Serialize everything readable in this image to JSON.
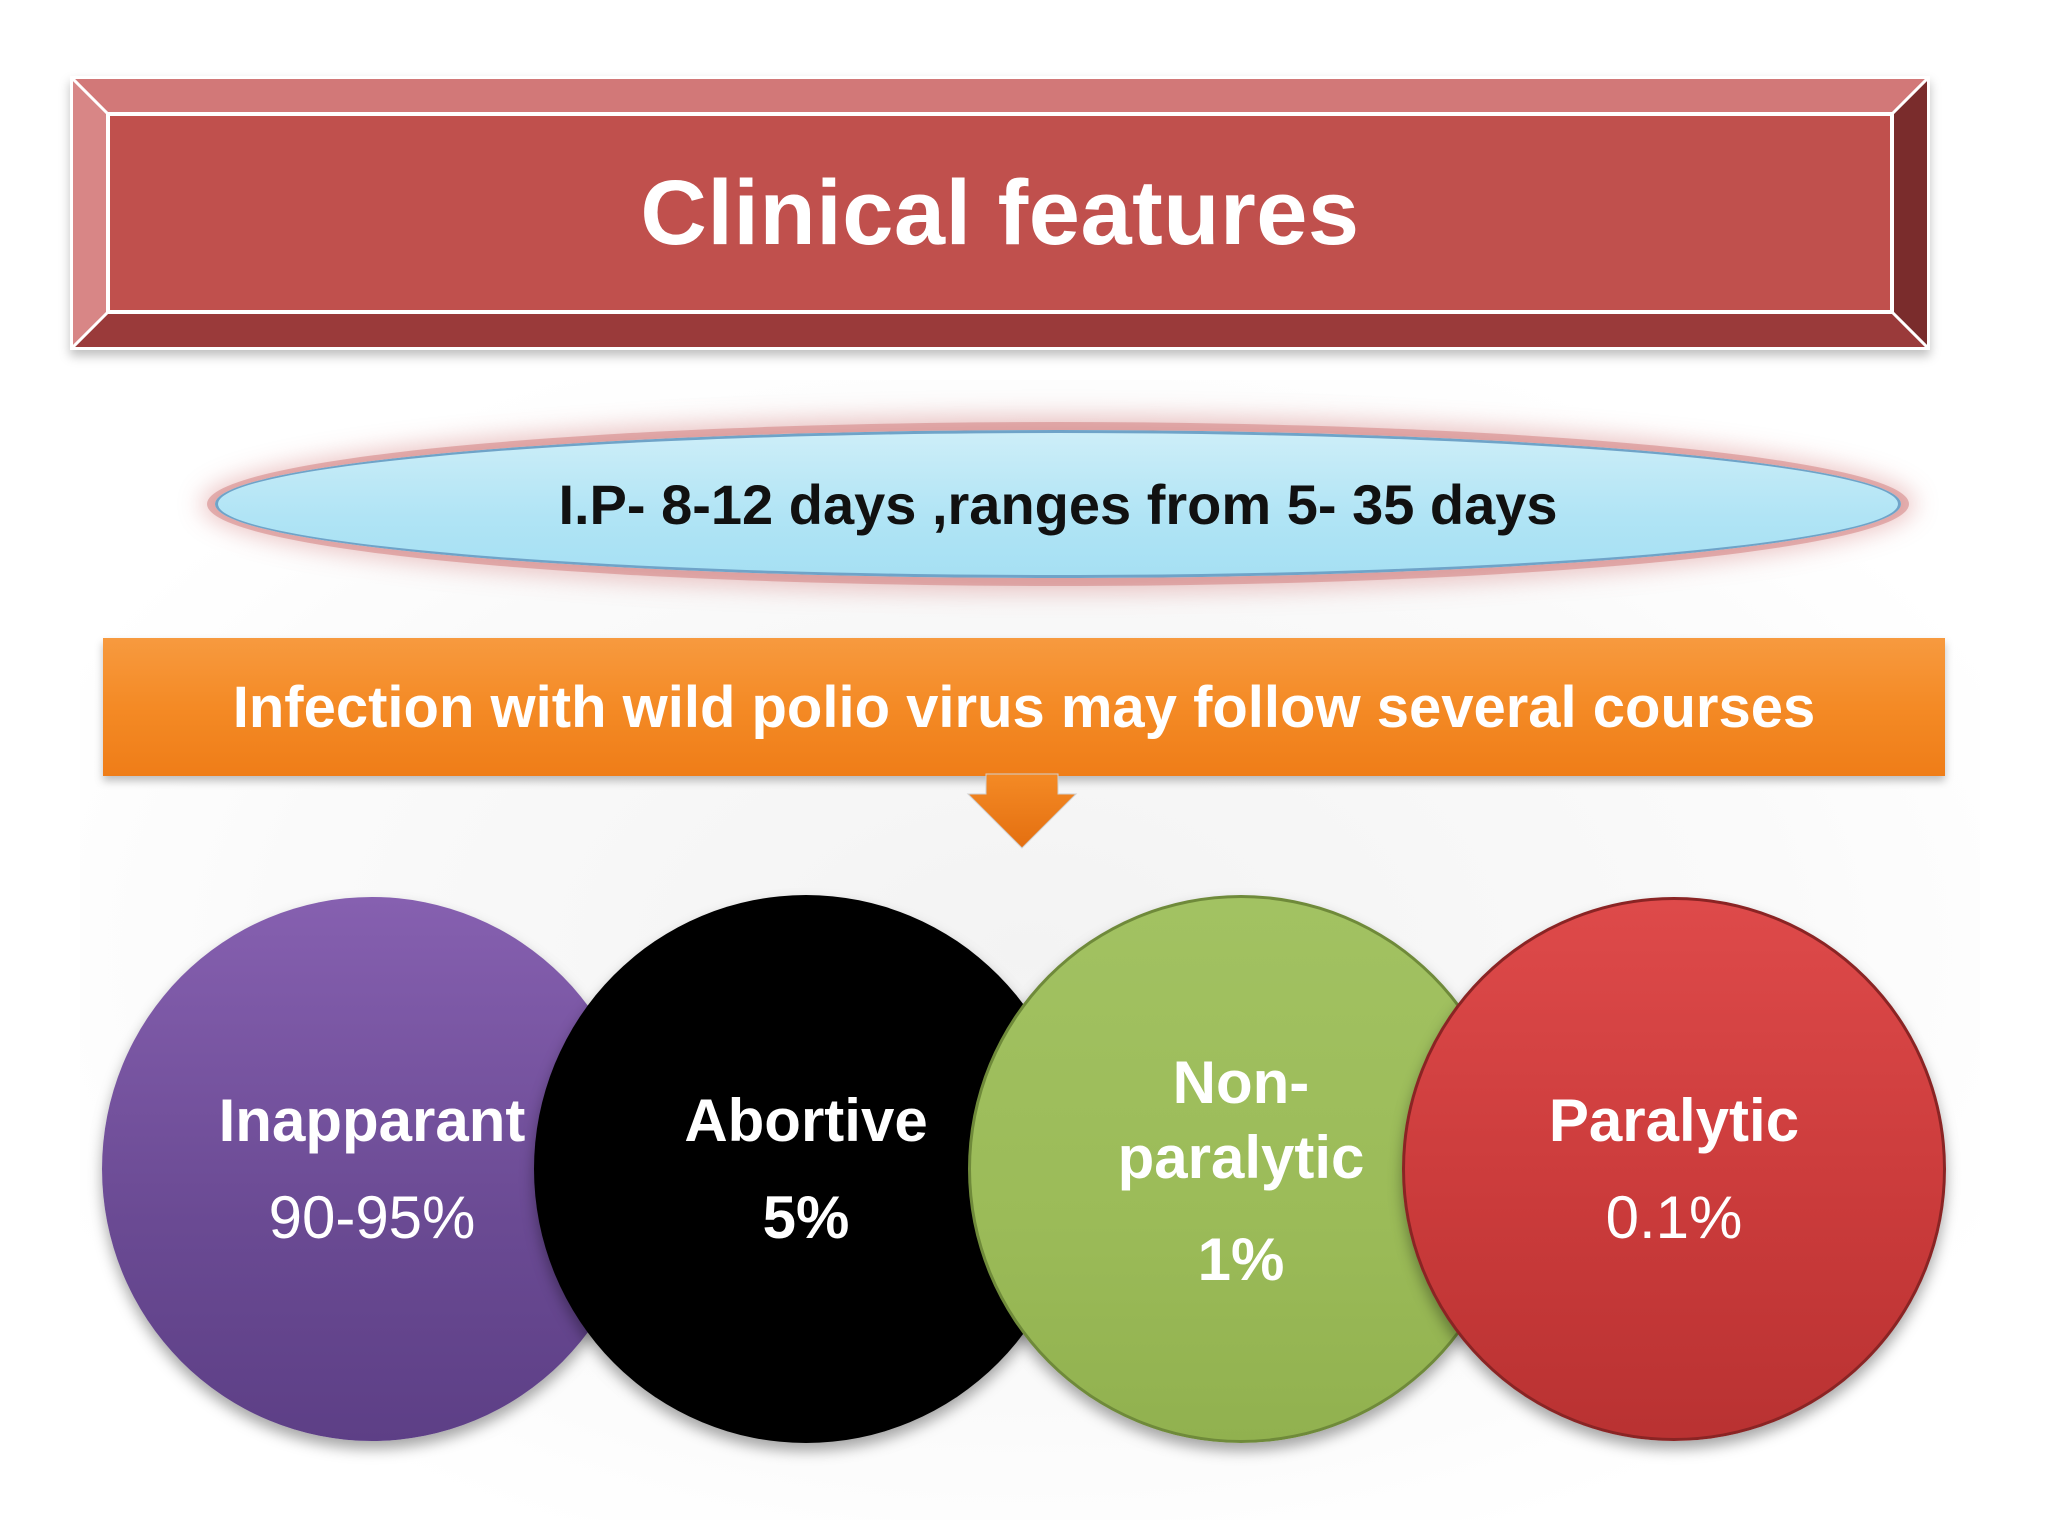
{
  "title": "Clinical features",
  "incubation": "I.P- 8-12 days ,ranges from 5- 35 days",
  "courses_banner": "Infection with wild polio virus may follow several courses",
  "courses": [
    {
      "label": "Inapparant",
      "value": "90-95%"
    },
    {
      "label": "Abortive",
      "value": "5%"
    },
    {
      "label": "Non-\nparalytic",
      "value": "1%"
    },
    {
      "label": "Paralytic",
      "value": "0.1%"
    }
  ],
  "colors": {
    "title_banner": "#c0504d",
    "incubation_fill": "#b0e4f5",
    "courses_banner": "#f48a25",
    "inapparant": "#7453a0",
    "abortive": "#000000",
    "non_paralytic": "#9bbb59",
    "paralytic": "#c0393b"
  }
}
